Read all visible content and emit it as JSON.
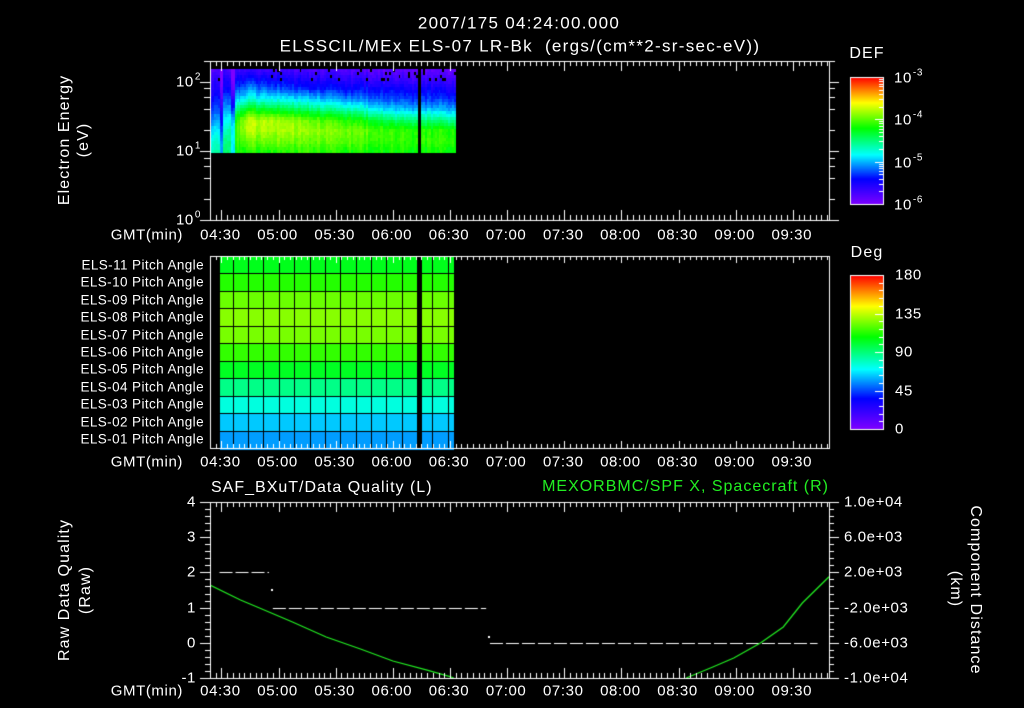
{
  "header": {
    "date_time": "2007/175 04:24:00.000",
    "title": "ELSSCIL/MEx ELS-07 LR-Bk  (ergs/(cm**2-sr-sec-eV))"
  },
  "time_axis": {
    "label": "GMT(min)",
    "start": "04:24",
    "end": "09:49",
    "minor_step_min": 3,
    "major_step_min": 30,
    "ticks": [
      "04:30",
      "05:00",
      "05:30",
      "06:00",
      "06:30",
      "07:00",
      "07:30",
      "08:00",
      "08:30",
      "09:00",
      "09:30"
    ]
  },
  "colors": {
    "background": "#000000",
    "foreground": "#ffffff",
    "right_axis_series": "#22ee22",
    "colormap": [
      "#7f00ff",
      "#0000ff",
      "#00ffff",
      "#00ff00",
      "#ffff00",
      "#ff8000",
      "#ff0000"
    ]
  },
  "chart_data": [
    {
      "type": "heatmap",
      "subtitle": "2007/175 04:24:00.000",
      "title": "ELSSCIL/MEx ELS-07 LR-Bk  (ergs/(cm**2-sr-sec-eV))",
      "xlabel": "GMT(min)",
      "ylabel": "Electron Energy",
      "ylabel_units": "(eV)",
      "xlim": [
        "04:24",
        "09:49"
      ],
      "yscale": "log",
      "ylim": [
        1,
        200
      ],
      "y_ticks": [
        {
          "value": 100,
          "base": "10",
          "exp": "2"
        },
        {
          "value": 10,
          "base": "10",
          "exp": "1"
        },
        {
          "value": 1,
          "base": "10",
          "exp": "0"
        }
      ],
      "colorbar": {
        "label": "DEF",
        "scale": "log",
        "range": [
          1e-06,
          0.001
        ],
        "ticks": [
          {
            "value": 0.001,
            "base": "10",
            "exp": "-3"
          },
          {
            "value": 0.0001,
            "base": "10",
            "exp": "-4"
          },
          {
            "value": 1e-05,
            "base": "10",
            "exp": "-5"
          },
          {
            "value": 1e-06,
            "base": "10",
            "exp": "-6"
          }
        ]
      },
      "data_time_range": [
        "04:24",
        "06:33"
      ],
      "data_energy_range_eV": [
        9.4,
        154
      ],
      "data_gaps": [
        [
          "06:13",
          "06:15"
        ]
      ],
      "energy_nodes_eV": [
        10,
        14,
        20,
        28,
        40,
        56,
        80,
        112,
        150
      ],
      "log_def_profiles": [
        {
          "t": "04:24",
          "log_def": [
            -4.65,
            -4.75,
            -4.9,
            -5.1,
            -5.25,
            -5.4,
            -5.55,
            -5.65,
            -5.8
          ]
        },
        {
          "t": "04:29",
          "log_def": [
            -4.6,
            -4.7,
            -4.85,
            -5.0,
            -5.2,
            -5.35,
            -5.5,
            -5.6,
            -5.75
          ]
        },
        {
          "t": "04:34",
          "log_def": [
            -4.45,
            -4.5,
            -4.6,
            -4.8,
            -5.0,
            -5.2,
            -5.4,
            -5.55,
            -5.7
          ]
        },
        {
          "t": "04:38",
          "log_def": [
            -4.2,
            -4.1,
            -4.0,
            -4.1,
            -4.5,
            -4.95,
            -5.25,
            -5.5,
            -5.65
          ]
        },
        {
          "t": "04:45",
          "log_def": [
            -4.15,
            -3.95,
            -3.75,
            -3.75,
            -4.2,
            -4.75,
            -5.1,
            -5.4,
            -5.65
          ]
        },
        {
          "t": "04:55",
          "log_def": [
            -4.15,
            -3.95,
            -3.8,
            -3.8,
            -4.3,
            -4.8,
            -5.2,
            -5.45,
            -5.7
          ]
        },
        {
          "t": "05:15",
          "log_def": [
            -4.1,
            -3.95,
            -3.85,
            -3.95,
            -4.45,
            -4.9,
            -5.35,
            -5.55,
            -5.75
          ]
        },
        {
          "t": "05:40",
          "log_def": [
            -4.15,
            -4.0,
            -3.95,
            -4.15,
            -4.65,
            -5.1,
            -5.4,
            -5.6,
            -5.8
          ]
        },
        {
          "t": "06:00",
          "log_def": [
            -4.2,
            -4.1,
            -4.1,
            -4.45,
            -4.95,
            -5.25,
            -5.45,
            -5.7,
            -5.85
          ]
        },
        {
          "t": "06:33",
          "log_def": [
            -4.2,
            -4.1,
            -4.15,
            -4.55,
            -5.0,
            -5.3,
            -5.5,
            -5.72,
            -5.88
          ]
        }
      ],
      "dropouts": [
        {
          "t": "04:30",
          "delta": -0.45
        },
        {
          "t": "04:36",
          "delta": -0.55
        }
      ]
    },
    {
      "type": "heatmap",
      "xlabel": "GMT(min)",
      "xlim": [
        "04:24",
        "09:49"
      ],
      "rows": [
        {
          "label": "ELS-11 Pitch Angle",
          "deg": 104
        },
        {
          "label": "ELS-10 Pitch Angle",
          "deg": 113
        },
        {
          "label": "ELS-09 Pitch Angle",
          "deg": 123
        },
        {
          "label": "ELS-08 Pitch Angle",
          "deg": 127
        },
        {
          "label": "ELS-07 Pitch Angle",
          "deg": 125
        },
        {
          "label": "ELS-06 Pitch Angle",
          "deg": 115
        },
        {
          "label": "ELS-05 Pitch Angle",
          "deg": 103
        },
        {
          "label": "ELS-04 Pitch Angle",
          "deg": 88
        },
        {
          "label": "ELS-03 Pitch Angle",
          "deg": 75
        },
        {
          "label": "ELS-02 Pitch Angle",
          "deg": 63
        },
        {
          "label": "ELS-01 Pitch Angle",
          "deg": 57
        }
      ],
      "colorbar": {
        "label": "Deg",
        "range": [
          0,
          180
        ],
        "ticks": [
          {
            "value": 180,
            "label": "180"
          },
          {
            "value": 135,
            "label": "135"
          },
          {
            "value": 90,
            "label": "90"
          },
          {
            "value": 45,
            "label": "45"
          },
          {
            "value": 0,
            "label": "0"
          }
        ]
      },
      "data_time_range": [
        "04:29",
        "06:32"
      ],
      "data_gaps": [
        [
          "06:13",
          "06:15"
        ]
      ],
      "cell_start_offset_min": 3.9,
      "cell_step_min": 8.06
    },
    {
      "type": "line",
      "xlabel": "GMT(min)",
      "xlim": [
        "04:24",
        "09:49"
      ],
      "title_left": "SAF_BXuT/Data Quality (L)",
      "title_right": "MEXORBMC/SPF X, Spacecraft (R)",
      "ylabel_left": "Raw Data Quality",
      "ylabel_left_units": "(Raw)",
      "ylim_left": [
        -1,
        4
      ],
      "yticks_left": [
        {
          "value": 4,
          "label": "4"
        },
        {
          "value": 3,
          "label": "3"
        },
        {
          "value": 2,
          "label": "2"
        },
        {
          "value": 1,
          "label": "1"
        },
        {
          "value": 0,
          "label": "0"
        },
        {
          "value": -1,
          "label": "-1"
        }
      ],
      "ylabel_right": "Component Distance",
      "ylabel_right_units": "(km)",
      "ylim_right": [
        -10000,
        10000
      ],
      "yticks_right": [
        {
          "value": 10000,
          "label": "1.0e+04"
        },
        {
          "value": 6000,
          "label": "6.0e+03"
        },
        {
          "value": 2000,
          "label": "2.0e+03"
        },
        {
          "value": -2000,
          "label": "-2.0e+03"
        },
        {
          "value": -6000,
          "label": "-6.0e+03"
        },
        {
          "value": -10000,
          "label": "-1.0e+04"
        }
      ],
      "series": [
        {
          "name": "SAF_BXuT/Data Quality",
          "axis": "left",
          "color": "#ffffff",
          "style": "dashed",
          "segments": [
            {
              "from": "04:29",
              "to": "04:55",
              "value": 2
            },
            {
              "from": "04:57",
              "to": "06:49",
              "value": 1
            },
            {
              "from": "06:51",
              "to": "09:43",
              "value": 0
            }
          ],
          "points": [
            {
              "t": "04:56",
              "value": 1.53
            },
            {
              "t": "06:50",
              "value": 0.2
            }
          ]
        },
        {
          "name": "MEXORBMC/SPF X, Spacecraft",
          "axis": "right",
          "color": "#22ee22",
          "style": "solid",
          "points": [
            [
              "04:24",
              570
            ],
            [
              "04:40",
              -1140
            ],
            [
              "04:50",
              -2050
            ],
            [
              "05:07",
              -3600
            ],
            [
              "05:25",
              -5340
            ],
            [
              "05:43",
              -6700
            ],
            [
              "06:00",
              -8070
            ],
            [
              "06:18",
              -9100
            ],
            [
              "06:30",
              -9850
            ],
            [
              "06:32",
              -10000
            ],
            null,
            [
              "08:34",
              -10000
            ],
            [
              "08:48",
              -8750
            ],
            [
              "08:59",
              -7730
            ],
            [
              "09:13",
              -6020
            ],
            [
              "09:25",
              -4200
            ],
            [
              "09:35",
              -1480
            ],
            [
              "09:49",
              1500
            ]
          ]
        }
      ]
    }
  ]
}
